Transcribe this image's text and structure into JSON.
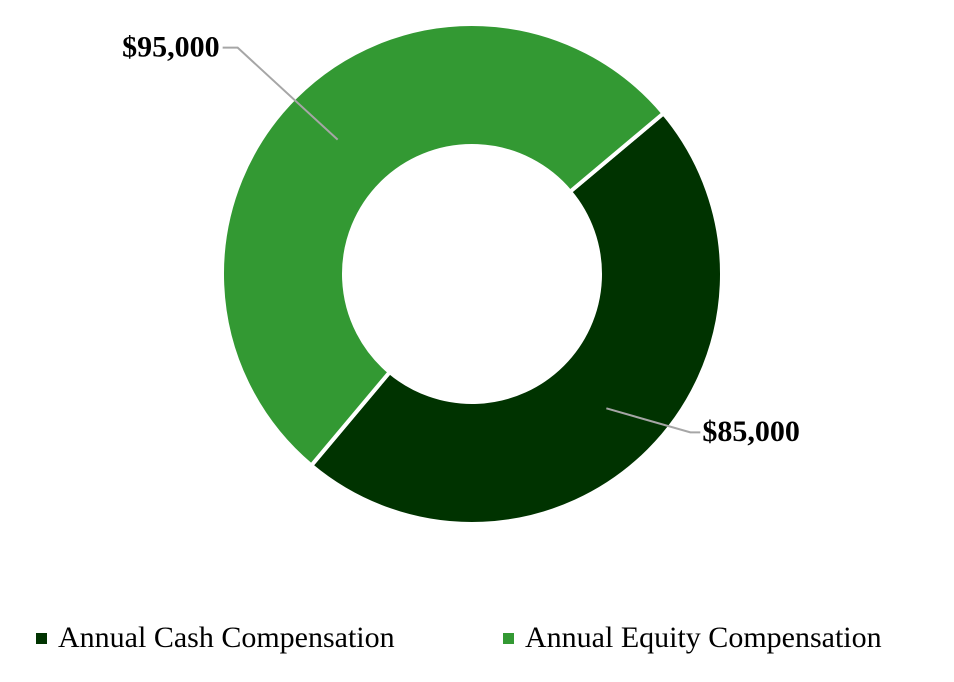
{
  "chart_data": {
    "type": "donut",
    "categories": [
      "Annual Cash Compensation",
      "Annual Equity Compensation"
    ],
    "values": [
      85000,
      95000
    ],
    "value_labels": [
      "$85,000",
      "$95,000"
    ],
    "colors": [
      "#003300",
      "#339933"
    ],
    "legend": "bottom"
  }
}
